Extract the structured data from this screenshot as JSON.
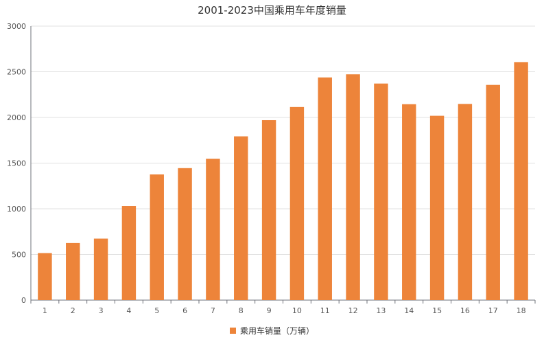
{
  "chart_data": {
    "type": "bar",
    "title": "2001-2023中国乘用车年度销量",
    "categories": [
      "1",
      "2",
      "3",
      "4",
      "5",
      "6",
      "7",
      "8",
      "9",
      "10",
      "11",
      "12",
      "13",
      "14",
      "15",
      "16",
      "17",
      "18"
    ],
    "series": [
      {
        "name": "乘用车销量（万辆）",
        "values": [
          515,
          625,
          673,
          1030,
          1376,
          1445,
          1548,
          1793,
          1970,
          2114,
          2438,
          2472,
          2371,
          2145,
          2018,
          2148,
          2356,
          2606
        ],
        "color": "#ed843a"
      }
    ],
    "yticks": [
      "0",
      "500",
      "1000",
      "1500",
      "2000",
      "2500",
      "3000"
    ],
    "ylim": [
      0,
      3000
    ],
    "grid": true,
    "legend_position": "bottom"
  }
}
